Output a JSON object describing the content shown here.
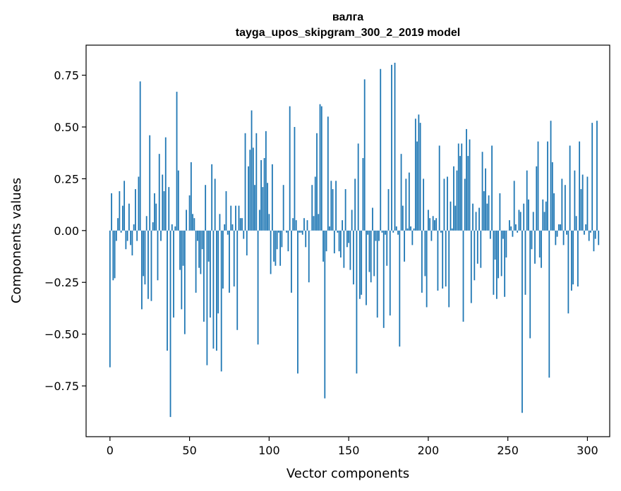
{
  "chart_data": {
    "type": "bar",
    "title_lines": [
      "валга",
      "tayga_upos_skipgram_300_2_2019 model"
    ],
    "xlabel": "Vector components",
    "ylabel": "Components values",
    "xlim": [
      -15,
      314
    ],
    "ylim": [
      -0.995,
      0.895
    ],
    "xticks": [
      0,
      50,
      100,
      150,
      200,
      250,
      300
    ],
    "yticks": [
      -0.75,
      -0.5,
      -0.25,
      0.0,
      0.25,
      0.5,
      0.75
    ],
    "xtick_labels": [
      "0",
      "50",
      "100",
      "150",
      "200",
      "250",
      "300"
    ],
    "ytick_labels": [
      "−0.75",
      "−0.50",
      "−0.25",
      "0.00",
      "0.25",
      "0.50",
      "0.75"
    ],
    "bar_color": "#1f77b4",
    "grid": false,
    "values": [
      -0.66,
      0.18,
      -0.24,
      -0.23,
      -0.05,
      0.06,
      0.19,
      -0.01,
      0.12,
      0.24,
      -0.09,
      -0.05,
      0.13,
      -0.07,
      -0.12,
      0.03,
      0.2,
      -0.05,
      0.26,
      0.72,
      -0.38,
      -0.22,
      -0.26,
      0.07,
      -0.33,
      0.46,
      -0.34,
      0.04,
      0.18,
      0.13,
      -0.24,
      0.37,
      -0.05,
      0.27,
      0.19,
      0.45,
      -0.58,
      0.21,
      -0.9,
      0.03,
      -0.42,
      0.02,
      0.67,
      0.29,
      -0.19,
      -0.38,
      -0.17,
      -0.5,
      0.1,
      0.0,
      0.17,
      0.33,
      0.08,
      0.06,
      -0.3,
      -0.05,
      -0.18,
      -0.21,
      -0.09,
      -0.44,
      0.22,
      -0.65,
      -0.15,
      -0.42,
      0.32,
      -0.57,
      0.25,
      -0.58,
      -0.4,
      0.08,
      -0.68,
      -0.28,
      0.03,
      0.19,
      -0.02,
      -0.3,
      0.12,
      0.03,
      -0.27,
      0.12,
      -0.48,
      0.12,
      0.06,
      0.06,
      -0.04,
      0.47,
      -0.12,
      0.31,
      0.39,
      0.58,
      0.4,
      0.22,
      0.47,
      -0.55,
      0.1,
      0.34,
      0.21,
      0.35,
      0.48,
      0.23,
      0.08,
      -0.21,
      0.32,
      -0.15,
      -0.17,
      -0.09,
      -0.01,
      -0.17,
      -0.08,
      0.22,
      0.0,
      -0.01,
      -0.1,
      0.6,
      -0.3,
      0.06,
      0.5,
      0.05,
      -0.69,
      -0.01,
      -0.01,
      -0.02,
      0.06,
      -0.08,
      0.05,
      -0.25,
      0.0,
      0.22,
      0.07,
      0.26,
      0.47,
      0.08,
      0.61,
      0.6,
      -0.15,
      -0.81,
      -0.1,
      0.55,
      0.02,
      0.24,
      0.2,
      -0.11,
      0.24,
      -0.01,
      -0.1,
      -0.13,
      0.05,
      -0.18,
      0.2,
      -0.08,
      -0.06,
      -0.19,
      0.1,
      -0.26,
      0.25,
      -0.69,
      0.42,
      -0.33,
      -0.31,
      0.35,
      0.73,
      -0.36,
      -0.02,
      -0.2,
      -0.25,
      0.11,
      -0.22,
      -0.05,
      -0.42,
      -0.05,
      0.78,
      -0.01,
      -0.47,
      -0.02,
      -0.17,
      0.2,
      -0.41,
      0.8,
      -0.01,
      0.81,
      0.02,
      -0.02,
      -0.56,
      0.37,
      0.12,
      -0.15,
      0.25,
      0.01,
      0.28,
      0.02,
      -0.07,
      0.01,
      0.54,
      0.43,
      0.56,
      0.52,
      -0.3,
      0.25,
      -0.22,
      -0.37,
      0.1,
      0.06,
      -0.05,
      0.07,
      0.05,
      0.06,
      -0.29,
      0.41,
      -0.01,
      -0.28,
      0.25,
      -0.27,
      0.26,
      -0.37,
      0.14,
      0.01,
      0.31,
      0.12,
      0.29,
      0.42,
      0.36,
      0.42,
      -0.44,
      0.25,
      0.49,
      0.36,
      0.44,
      -0.35,
      0.13,
      -0.24,
      0.09,
      -0.16,
      0.11,
      -0.18,
      0.38,
      0.19,
      0.3,
      0.13,
      0.17,
      -0.04,
      0.41,
      -0.31,
      -0.14,
      -0.33,
      -0.23,
      0.18,
      -0.22,
      -0.04,
      -0.32,
      -0.13,
      0.0,
      0.05,
      0.02,
      -0.03,
      0.24,
      0.03,
      -0.01,
      0.1,
      0.09,
      -0.88,
      0.13,
      -0.31,
      0.29,
      0.15,
      -0.52,
      -0.09,
      0.09,
      -0.16,
      0.31,
      0.43,
      -0.13,
      -0.18,
      0.15,
      0.09,
      0.14,
      0.43,
      -0.71,
      0.53,
      0.33,
      0.18,
      -0.07,
      -0.03,
      0.03,
      0.03,
      0.25,
      -0.07,
      0.22,
      -0.02,
      -0.4,
      0.41,
      -0.29,
      -0.26,
      0.29,
      0.07,
      -0.27,
      0.43,
      0.2,
      0.27,
      -0.02,
      0.03,
      0.26,
      -0.05,
      -0.01,
      0.52,
      -0.1,
      -0.04,
      0.53,
      -0.07
    ]
  }
}
